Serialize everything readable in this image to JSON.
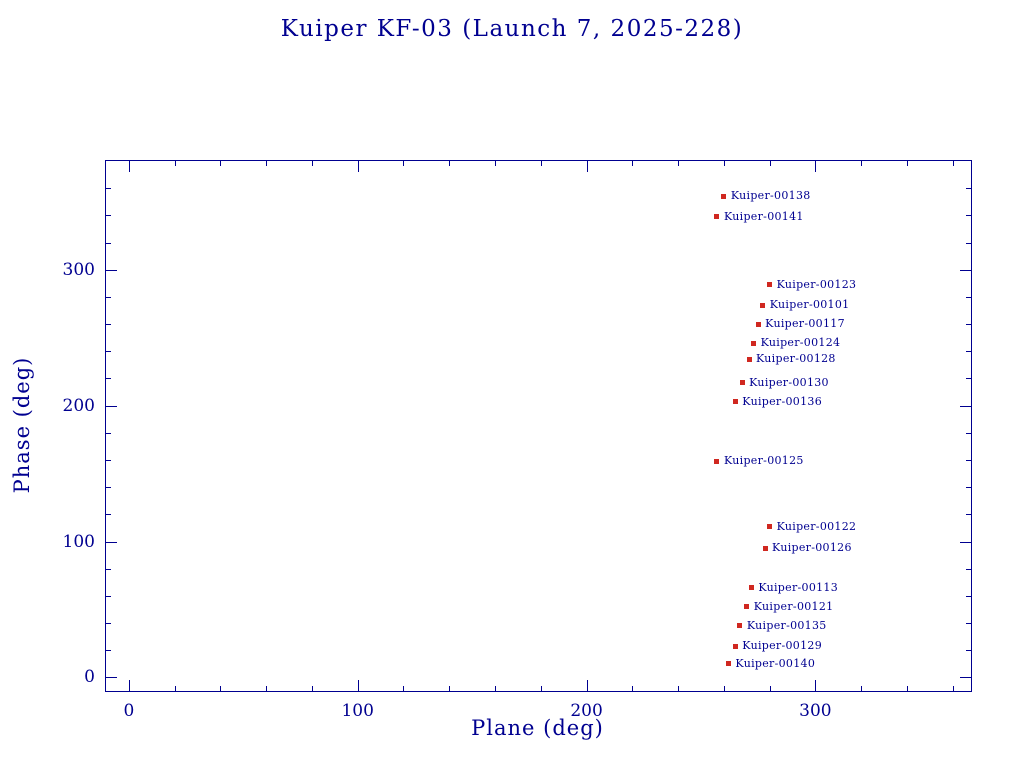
{
  "title": "Kuiper KF-03 (Launch 7, 2025-228)",
  "colors": {
    "axis": "#000090",
    "marker": "#d02820",
    "background": "#ffffff"
  },
  "chart_data": {
    "type": "scatter",
    "title": "Kuiper KF-03 (Launch 7, 2025-228)",
    "xlabel": "Plane (deg)",
    "ylabel": "Phase (deg)",
    "xlim": [
      -10,
      368
    ],
    "ylim": [
      -10,
      380
    ],
    "xticks": [
      0,
      100,
      200,
      300
    ],
    "yticks": [
      0,
      100,
      200,
      300
    ],
    "minor_tick_interval": 20,
    "grid": false,
    "legend": "none",
    "points": [
      {
        "label": "Kuiper-00138",
        "x": 260,
        "y": 354
      },
      {
        "label": "Kuiper-00141",
        "x": 257,
        "y": 339
      },
      {
        "label": "Kuiper-00123",
        "x": 280,
        "y": 289
      },
      {
        "label": "Kuiper-00101",
        "x": 277,
        "y": 274
      },
      {
        "label": "Kuiper-00117",
        "x": 275,
        "y": 260
      },
      {
        "label": "Kuiper-00124",
        "x": 273,
        "y": 246
      },
      {
        "label": "Kuiper-00128",
        "x": 271,
        "y": 234
      },
      {
        "label": "Kuiper-00130",
        "x": 268,
        "y": 217
      },
      {
        "label": "Kuiper-00136",
        "x": 265,
        "y": 203
      },
      {
        "label": "Kuiper-00125",
        "x": 257,
        "y": 159
      },
      {
        "label": "Kuiper-00122",
        "x": 280,
        "y": 111
      },
      {
        "label": "Kuiper-00126",
        "x": 278,
        "y": 95
      },
      {
        "label": "Kuiper-00113",
        "x": 272,
        "y": 66
      },
      {
        "label": "Kuiper-00121",
        "x": 270,
        "y": 52
      },
      {
        "label": "Kuiper-00135",
        "x": 267,
        "y": 38
      },
      {
        "label": "Kuiper-00129",
        "x": 265,
        "y": 23
      },
      {
        "label": "Kuiper-00140",
        "x": 262,
        "y": 10
      }
    ]
  }
}
